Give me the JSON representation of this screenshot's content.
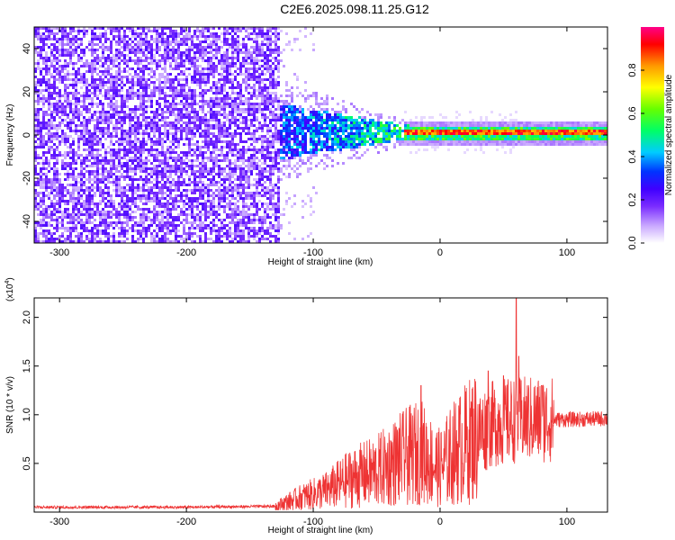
{
  "figure": {
    "title": "C2E6.2025.098.11.25.G12"
  },
  "chart_data": [
    {
      "type": "heatmap",
      "title": "C2E6.2025.098.11.25.G12",
      "xlabel": "Height of straight line (km)",
      "ylabel": "Frequency (Hz)",
      "xlim": [
        -320,
        132
      ],
      "ylim": [
        -50,
        50
      ],
      "xticks": [
        -300,
        -200,
        -100,
        0,
        100
      ],
      "yticks": [
        -40,
        -20,
        0,
        20,
        40
      ],
      "colorbar": {
        "label": "Normalized spectral amplitude",
        "range": [
          0.0,
          1.0
        ],
        "ticks": [
          0.0,
          0.2,
          0.4,
          0.6,
          0.8
        ],
        "tick_labels": [
          "0.0",
          "0.2",
          "0.4",
          "0.6",
          "0.8"
        ],
        "colormap": [
          "#ffffff",
          "#c9a8ff",
          "#7a2cff",
          "#3f00ff",
          "#0033ff",
          "#00ccff",
          "#00ff66",
          "#66ff00",
          "#ffff00",
          "#ff9900",
          "#ff0000",
          "#ff0088"
        ]
      },
      "regions": [
        {
          "x_range": [
            -320,
            -128
          ],
          "f_range": [
            -50,
            50
          ],
          "amplitude": 0.12,
          "description": "broadband noise"
        },
        {
          "x_range": [
            -128,
            -88
          ],
          "f_range": [
            -50,
            50
          ],
          "amplitude": 0.04,
          "description": "sparse noise"
        },
        {
          "x_range": [
            -128,
            -30
          ],
          "f_range": [
            -8,
            12
          ],
          "amplitude": 0.35,
          "description": "emerging signal"
        },
        {
          "x_range": [
            -30,
            132
          ],
          "f_center": 1.5,
          "f_halfwidth": 3,
          "amplitude": 0.9,
          "description": "narrow carrier line"
        }
      ],
      "grid": false
    },
    {
      "type": "line",
      "xlabel": "Height of straight line (km)",
      "ylabel": "SNR (10 * v/v)",
      "y_scale_label": "(x10",
      "y_scale_exp": "4",
      "y_scale_close": ")",
      "xlim": [
        -320,
        132
      ],
      "ylim": [
        0,
        2.2
      ],
      "xticks": [
        -300,
        -200,
        -100,
        0,
        100
      ],
      "yticks": [
        0.5,
        1.0,
        1.5,
        2.0
      ],
      "ytick_labels": [
        "0.5",
        "1.0",
        "1.5",
        "2.0"
      ],
      "color": "#ee3333",
      "envelope": [
        {
          "x": -320,
          "y": 0.05
        },
        {
          "x": -200,
          "y": 0.05
        },
        {
          "x": -130,
          "y": 0.06
        },
        {
          "x": -110,
          "y": 0.15
        },
        {
          "x": -90,
          "y": 0.22
        },
        {
          "x": -70,
          "y": 0.35
        },
        {
          "x": -50,
          "y": 0.42
        },
        {
          "x": -30,
          "y": 0.55
        },
        {
          "x": -15,
          "y": 0.62
        },
        {
          "x": -10,
          "y": 0.55
        },
        {
          "x": 0,
          "y": 0.45
        },
        {
          "x": 10,
          "y": 0.6
        },
        {
          "x": 25,
          "y": 0.75
        },
        {
          "x": 40,
          "y": 0.9
        },
        {
          "x": 60,
          "y": 0.95
        },
        {
          "x": 80,
          "y": 0.95
        },
        {
          "x": 100,
          "y": 0.95
        },
        {
          "x": 132,
          "y": 0.96
        }
      ],
      "spikes": [
        {
          "x": -15,
          "y": 1.3
        },
        {
          "x": 38,
          "y": 1.45
        },
        {
          "x": 50,
          "y": 1.4
        },
        {
          "x": 60,
          "y": 2.2
        },
        {
          "x": 62,
          "y": 1.6
        },
        {
          "x": 80,
          "y": 1.3
        }
      ],
      "grid": false
    }
  ]
}
